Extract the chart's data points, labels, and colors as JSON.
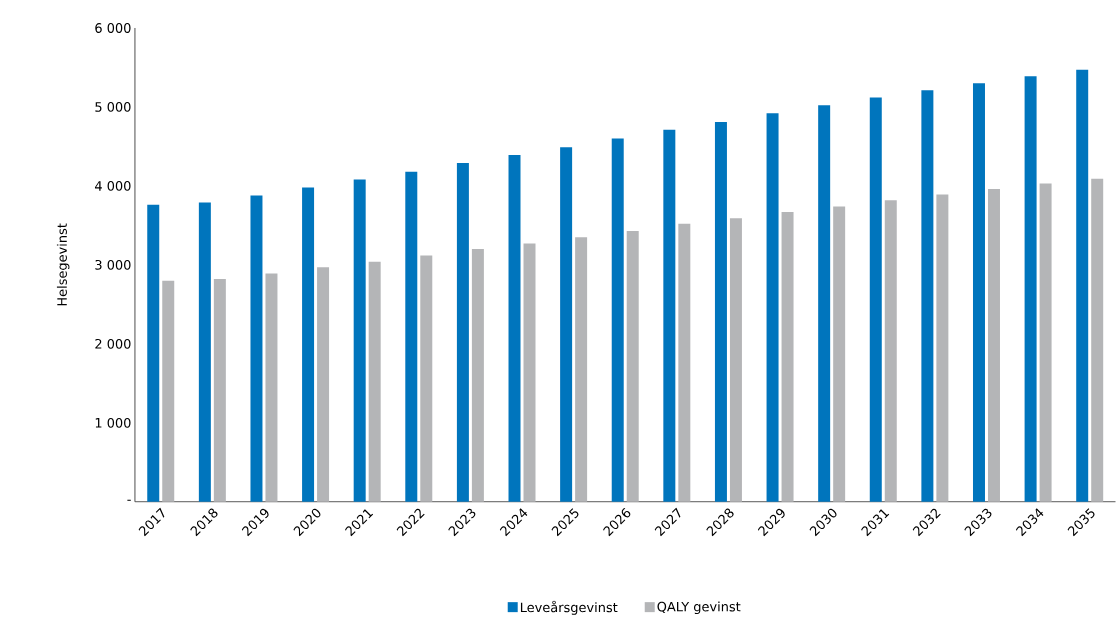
{
  "chart_data": {
    "type": "bar",
    "ylabel": "Helsegevinst",
    "categories": [
      "2017",
      "2018",
      "2019",
      "2020",
      "2021",
      "2022",
      "2023",
      "2024",
      "2025",
      "2026",
      "2027",
      "2028",
      "2029",
      "2030",
      "2031",
      "2032",
      "2033",
      "2034",
      "2035"
    ],
    "series": [
      {
        "name": "Leveårsgevinst",
        "color": "#0075bd",
        "values": [
          3760,
          3790,
          3880,
          3980,
          4080,
          4180,
          4290,
          4390,
          4490,
          4600,
          4710,
          4810,
          4920,
          5020,
          5120,
          5210,
          5300,
          5390,
          5470
        ]
      },
      {
        "name": "QALY gevinst",
        "color": "#b4b5b7",
        "values": [
          2800,
          2820,
          2890,
          2970,
          3040,
          3120,
          3200,
          3270,
          3350,
          3430,
          3520,
          3590,
          3670,
          3740,
          3820,
          3890,
          3960,
          4030,
          4090
        ]
      }
    ],
    "ylim": [
      0,
      6000
    ],
    "yticks": [
      {
        "value": 0,
        "label": "-"
      },
      {
        "value": 1000,
        "label": "1 000"
      },
      {
        "value": 2000,
        "label": "2 000"
      },
      {
        "value": 3000,
        "label": "3 000"
      },
      {
        "value": 4000,
        "label": "4 000"
      },
      {
        "value": 5000,
        "label": "5 000"
      },
      {
        "value": 6000,
        "label": "6 000"
      }
    ],
    "grid": false,
    "legend": "bottom"
  }
}
